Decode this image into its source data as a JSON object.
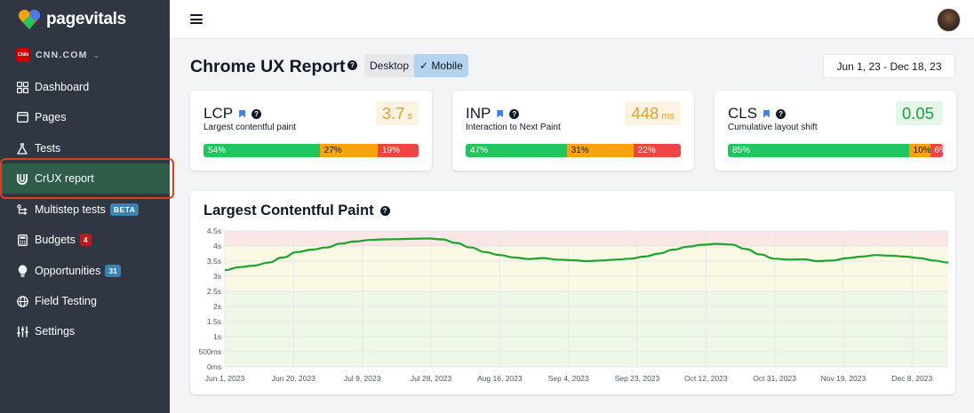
{
  "brand": {
    "name": "pagevitals"
  },
  "site": {
    "badge": "CNN",
    "name": "CNN.COM"
  },
  "sidebar": {
    "items": [
      {
        "label": "Dashboard",
        "icon": "grid-icon"
      },
      {
        "label": "Pages",
        "icon": "window-icon"
      },
      {
        "label": "Tests",
        "icon": "flask-icon"
      },
      {
        "label": "CrUX report",
        "icon": "crux-icon",
        "active": true
      },
      {
        "label": "Multistep tests",
        "icon": "steps-icon",
        "badge": "BETA"
      },
      {
        "label": "Budgets",
        "icon": "calculator-icon",
        "badge": "4"
      },
      {
        "label": "Opportunities",
        "icon": "lightbulb-icon",
        "badge": "31"
      },
      {
        "label": "Field Testing",
        "icon": "globe-icon"
      },
      {
        "label": "Settings",
        "icon": "sliders-icon"
      }
    ]
  },
  "header": {
    "title": "Chrome UX Report",
    "help": "?",
    "toggle": {
      "desktop": "Desktop",
      "mobile": "✓ Mobile",
      "selected": "Mobile"
    },
    "date_range": "Jun 1, 23 - Dec 18, 23"
  },
  "metrics": [
    {
      "name": "LCP",
      "description": "Largest contentful paint",
      "value": "3.7",
      "unit": "s",
      "status": "warn",
      "distribution": {
        "good": 54,
        "needs_improvement": 27,
        "poor": 19
      },
      "labels": {
        "good": "54%",
        "needs_improvement": "27%",
        "poor": "19%"
      }
    },
    {
      "name": "INP",
      "description": "Interaction to Next Paint",
      "value": "448",
      "unit": "ms",
      "status": "warn",
      "distribution": {
        "good": 47,
        "needs_improvement": 31,
        "poor": 22
      },
      "labels": {
        "good": "47%",
        "needs_improvement": "31%",
        "poor": "22%"
      }
    },
    {
      "name": "CLS",
      "description": "Cumulative layout shift",
      "value": "0.05",
      "unit": "",
      "status": "good",
      "distribution": {
        "good": 85,
        "needs_improvement": 10,
        "poor": 6
      },
      "labels": {
        "good": "85%",
        "needs_improvement": "10%",
        "poor": "6%"
      }
    }
  ],
  "colors": {
    "good": "#22c55e",
    "warn": "#f5a40f",
    "poor": "#ef4444",
    "line": "#1aa52c",
    "active_nav": "#2f5d4a"
  },
  "chart_data": {
    "type": "line",
    "title": "Largest Contentful Paint",
    "y_ticks": [
      "0ms",
      "500ms",
      "1s",
      "1.5s",
      "2s",
      "2.5s",
      "3s",
      "3.5s",
      "4s",
      "4.5s"
    ],
    "y_tick_values": [
      0,
      0.5,
      1,
      1.5,
      2,
      2.5,
      3,
      3.5,
      4,
      4.5
    ],
    "ylim": [
      0,
      4.5
    ],
    "bands": [
      {
        "from": 0,
        "to": 2.5,
        "color": "#eef8e8"
      },
      {
        "from": 2.5,
        "to": 4,
        "color": "#fbf8e4"
      },
      {
        "from": 4,
        "to": 4.5,
        "color": "#fbe6e6"
      }
    ],
    "x_ticks": [
      "Jun 1, 2023",
      "Jun 20, 2023",
      "Jul 9, 2023",
      "Jul 28, 2023",
      "Aug 16, 2023",
      "Sep 4, 2023",
      "Sep 23, 2023",
      "Oct 12, 2023",
      "Oct 31, 2023",
      "Nov 19, 2023",
      "Dec 8, 2023"
    ],
    "x_tick_days": [
      0,
      19,
      38,
      57,
      76,
      95,
      114,
      133,
      152,
      171,
      190
    ],
    "x_range_days": [
      0,
      200
    ],
    "series": [
      {
        "x": [
          0,
          4,
          8,
          12,
          16,
          20,
          24,
          28,
          32,
          36,
          40,
          44,
          48,
          52,
          56,
          60,
          64,
          68,
          72,
          76,
          80,
          84,
          88,
          92,
          96,
          100,
          104,
          108,
          112,
          116,
          120,
          124,
          128,
          132,
          136,
          140,
          144,
          148,
          152,
          156,
          160,
          164,
          168,
          172,
          176,
          180,
          184,
          188,
          192,
          196,
          200
        ],
        "y": [
          3.2,
          3.3,
          3.35,
          3.45,
          3.62,
          3.8,
          3.88,
          3.95,
          4.08,
          4.15,
          4.2,
          4.22,
          4.23,
          4.24,
          4.25,
          4.22,
          4.1,
          3.95,
          3.8,
          3.7,
          3.62,
          3.57,
          3.6,
          3.55,
          3.53,
          3.5,
          3.52,
          3.55,
          3.58,
          3.65,
          3.75,
          3.88,
          3.98,
          4.04,
          4.07,
          4.05,
          3.9,
          3.72,
          3.58,
          3.55,
          3.56,
          3.5,
          3.52,
          3.6,
          3.65,
          3.7,
          3.68,
          3.65,
          3.6,
          3.52,
          3.45
        ]
      }
    ]
  }
}
